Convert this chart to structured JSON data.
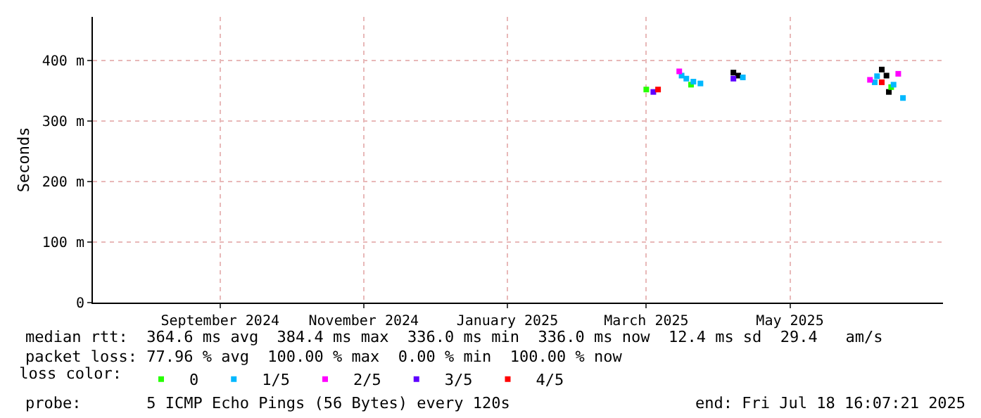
{
  "chart_data": {
    "type": "scatter",
    "ylabel": "Seconds",
    "legend_title": "loss color:",
    "legend": "bottom",
    "grid": true,
    "marker": "square",
    "xlim": [
      "2024-07-24",
      "2025-07-20"
    ],
    "xticks": [
      {
        "value": "2024-09-16",
        "label": "September 2024"
      },
      {
        "value": "2024-11-16",
        "label": "November 2024"
      },
      {
        "value": "2025-01-16",
        "label": "January 2025"
      },
      {
        "value": "2025-03-16",
        "label": "March 2025"
      },
      {
        "value": "2025-05-16",
        "label": "May 2025"
      }
    ],
    "ylim": [
      0,
      472
    ],
    "yticks": [
      0,
      {
        "value": 100,
        "label": "100 m"
      },
      {
        "value": 200,
        "label": "200 m"
      },
      {
        "value": 300,
        "label": "300 m"
      },
      {
        "value": 400,
        "label": "400 m"
      }
    ],
    "series": [
      {
        "color": "#000000",
        "x": [
          "2025-04-22",
          "2025-04-24",
          "2025-06-24",
          "2025-06-26",
          "2025-06-27"
        ],
        "values": [
          380,
          375,
          385,
          375,
          348
        ]
      },
      {
        "name": "0",
        "color": "#26ff00",
        "x": [
          "2025-03-16",
          "2025-04-04",
          "2025-06-28"
        ],
        "values": [
          352,
          360,
          356
        ]
      },
      {
        "name": "1/5",
        "color": "#00b8ff",
        "x": [
          "2025-03-31",
          "2025-04-02",
          "2025-04-05",
          "2025-04-08",
          "2025-04-26",
          "2025-06-21",
          "2025-06-22",
          "2025-06-29",
          "2025-07-03"
        ],
        "values": [
          375,
          370,
          365,
          362,
          372,
          364,
          374,
          360,
          338
        ]
      },
      {
        "name": "2/5",
        "color": "#ff00ff",
        "x": [
          "2025-03-30",
          "2025-06-19",
          "2025-07-01"
        ],
        "values": [
          382,
          368,
          378
        ]
      },
      {
        "name": "3/5",
        "color": "#5e00ff",
        "x": [
          "2025-03-19",
          "2025-04-22"
        ],
        "values": [
          348,
          370
        ]
      },
      {
        "name": "4/5",
        "color": "#ff0000",
        "x": [
          "2025-03-21",
          "2025-06-24"
        ],
        "values": [
          352,
          364
        ]
      }
    ],
    "annotations": [
      "median rtt:  364.6 ms avg  384.4 ms max  336.0 ms min  336.0 ms now  12.4 ms sd  29.4   am/s",
      "packet loss: 77.96 % avg  100.00 % max  0.00 % min  100.00 % now",
      "probe:       5 ICMP Echo Pings (56 Bytes) every 120s",
      "end: Fri Jul 18 16:07:21 2025"
    ]
  }
}
